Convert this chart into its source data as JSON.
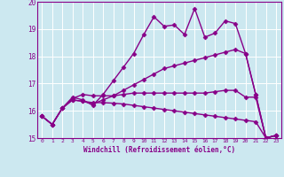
{
  "xlabel": "Windchill (Refroidissement éolien,°C)",
  "bg_color": "#cce8f0",
  "line_color": "#880088",
  "grid_color": "#ffffff",
  "xlim": [
    -0.5,
    23.5
  ],
  "ylim": [
    15,
    20
  ],
  "xticks": [
    0,
    1,
    2,
    3,
    4,
    5,
    6,
    7,
    8,
    9,
    10,
    11,
    12,
    13,
    14,
    15,
    16,
    17,
    18,
    19,
    20,
    21,
    22,
    23
  ],
  "yticks": [
    15,
    16,
    17,
    18,
    19,
    20
  ],
  "series": [
    {
      "x": [
        0,
        1,
        2,
        3,
        4,
        5,
        6,
        7,
        8,
        9,
        10,
        11,
        12,
        13,
        14,
        15,
        16,
        17,
        18,
        19,
        20,
        21,
        22,
        23
      ],
      "y": [
        15.8,
        15.5,
        16.1,
        16.5,
        16.4,
        16.2,
        16.6,
        17.1,
        17.6,
        18.1,
        18.8,
        19.45,
        19.1,
        19.15,
        18.8,
        19.75,
        18.7,
        18.85,
        19.3,
        19.2,
        18.1,
        16.6,
        15.0,
        15.1
      ],
      "marker": "D",
      "markersize": 2.5,
      "linewidth": 1.0,
      "has_marker": true
    },
    {
      "x": [
        0,
        1,
        2,
        3,
        4,
        5,
        6,
        7,
        8,
        9,
        10,
        11,
        12,
        13,
        14,
        15,
        16,
        17,
        18,
        19,
        20,
        21,
        22,
        23
      ],
      "y": [
        15.8,
        15.5,
        16.1,
        16.4,
        16.35,
        16.25,
        16.4,
        16.55,
        16.75,
        16.95,
        17.15,
        17.35,
        17.55,
        17.65,
        17.75,
        17.85,
        17.95,
        18.05,
        18.15,
        18.25,
        18.1,
        16.6,
        15.0,
        15.1
      ],
      "marker": "D",
      "markersize": 2.5,
      "linewidth": 1.0,
      "has_marker": true
    },
    {
      "x": [
        0,
        1,
        2,
        3,
        4,
        5,
        6,
        7,
        8,
        9,
        10,
        11,
        12,
        13,
        14,
        15,
        16,
        17,
        18,
        19,
        20,
        21,
        22,
        23
      ],
      "y": [
        15.8,
        15.5,
        16.1,
        16.45,
        16.6,
        16.55,
        16.55,
        16.55,
        16.6,
        16.65,
        16.65,
        16.65,
        16.65,
        16.65,
        16.65,
        16.65,
        16.65,
        16.7,
        16.75,
        16.75,
        16.5,
        16.5,
        15.0,
        15.1
      ],
      "marker": "D",
      "markersize": 2.5,
      "linewidth": 1.0,
      "has_marker": true
    },
    {
      "x": [
        0,
        1,
        2,
        3,
        4,
        5,
        6,
        7,
        8,
        9,
        10,
        11,
        12,
        13,
        14,
        15,
        16,
        17,
        18,
        19,
        20,
        21,
        22,
        23
      ],
      "y": [
        15.8,
        15.5,
        16.1,
        16.4,
        16.35,
        16.3,
        16.3,
        16.28,
        16.25,
        16.2,
        16.15,
        16.1,
        16.05,
        16.0,
        15.95,
        15.9,
        15.85,
        15.8,
        15.75,
        15.7,
        15.65,
        15.6,
        15.0,
        15.1
      ],
      "marker": "D",
      "markersize": 2.5,
      "linewidth": 1.0,
      "has_marker": true
    }
  ]
}
